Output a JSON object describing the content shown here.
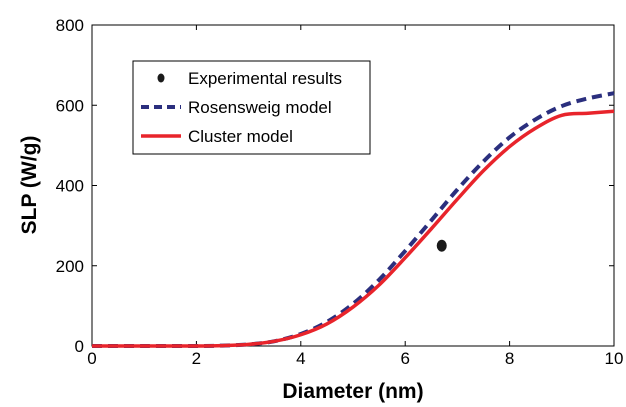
{
  "chart_data": {
    "type": "line",
    "xlabel": "Diameter (nm)",
    "ylabel": "SLP (W/g)",
    "xlim": [
      0,
      10
    ],
    "ylim": [
      0,
      800
    ],
    "x_ticks": [
      "0",
      "2",
      "4",
      "6",
      "8",
      "10"
    ],
    "y_ticks": [
      "0",
      "200",
      "400",
      "600",
      "800"
    ],
    "grid": false,
    "legend_position": "top-left",
    "series": [
      {
        "name": "Experimental results",
        "style": "marker",
        "color": "#1a1a1a",
        "x": [
          6.7
        ],
        "y": [
          250
        ]
      },
      {
        "name": "Rosensweig model",
        "style": "dashed",
        "color": "#2b2f7e",
        "x": [
          0,
          1,
          2,
          2.5,
          3,
          3.5,
          4,
          4.5,
          5,
          5.5,
          6,
          6.5,
          7,
          7.5,
          8,
          8.5,
          9,
          9.5,
          10
        ],
        "y": [
          0,
          0,
          0,
          1,
          4,
          12,
          30,
          60,
          105,
          165,
          237,
          313,
          390,
          460,
          520,
          565,
          598,
          617,
          630
        ]
      },
      {
        "name": "Cluster model",
        "style": "solid",
        "color": "#e8242b",
        "x": [
          0,
          1,
          2,
          2.5,
          3,
          3.5,
          4,
          4.5,
          5,
          5.5,
          6,
          6.5,
          7,
          7.5,
          8,
          8.5,
          9,
          9.5,
          10
        ],
        "y": [
          0,
          0,
          0,
          1,
          4,
          12,
          28,
          55,
          97,
          152,
          220,
          292,
          366,
          437,
          497,
          543,
          575,
          580,
          585
        ]
      }
    ]
  }
}
